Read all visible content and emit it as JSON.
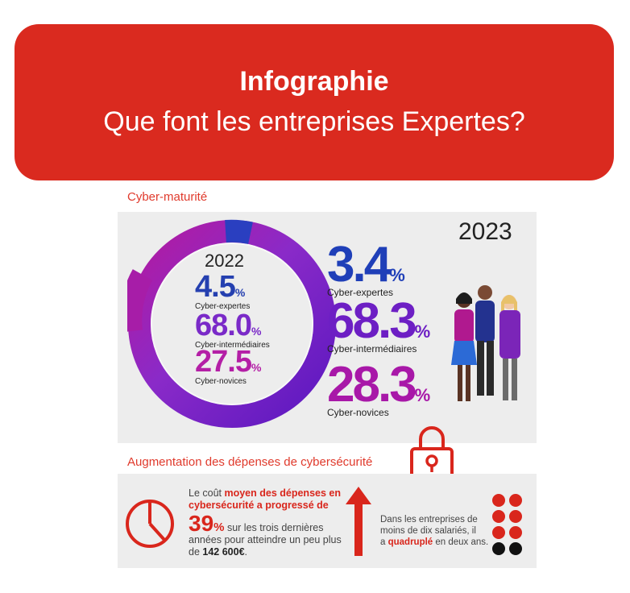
{
  "banner": {
    "title": "Infographie",
    "subtitle": "Que font les entreprises Expertes?"
  },
  "maturity": {
    "section_title": "Cyber-maturité",
    "y2022": {
      "year": "2022",
      "items": [
        {
          "value": "4.5",
          "unit": "%",
          "label": "Cyber-expertes",
          "color": "#2540b0"
        },
        {
          "value": "68.0",
          "unit": "%",
          "label": "Cyber-intermédiaires",
          "color": "#7a2ac8"
        },
        {
          "value": "27.5",
          "unit": "%",
          "label": "Cyber-novices",
          "color": "#b41fa6"
        }
      ]
    },
    "y2023": {
      "year": "2023",
      "items": [
        {
          "value": "3.4",
          "unit": "%",
          "label": "Cyber-expertes",
          "color": "#1f3fb8"
        },
        {
          "value": "68.3",
          "unit": "%",
          "label": "Cyber-intermédiaires",
          "color": "#6d1fc4"
        },
        {
          "value": "28.3",
          "unit": "%",
          "label": "Cyber-novices",
          "color": "#a818a8"
        }
      ]
    }
  },
  "spending": {
    "section_title": "Augmentation des dépenses de cybersécurité",
    "text": {
      "line1_pre": "Le coût ",
      "line1_hl": "moyen des dépenses en",
      "line2_hl": "cybersécurité a progressé de",
      "percent": "39",
      "percent_unit": "%",
      "line3": " sur les trois dernières",
      "line4": "années pour atteindre un peu plus",
      "line5_pre": "de ",
      "amount": "142 600€",
      "line5_post": "."
    },
    "small": {
      "line1": "Dans les entreprises de",
      "line2": "moins de dix salariés, il",
      "line3_pre": "a ",
      "line3_hl": "quadruplé",
      "line3_post": " en deux ans."
    }
  },
  "icons": [
    "lock-icon",
    "clock-icon",
    "up-arrow-icon",
    "dots-grid-icon",
    "people-illustration"
  ],
  "colors": {
    "brand_red": "#da2a1f",
    "panel_gray": "#ededed"
  }
}
